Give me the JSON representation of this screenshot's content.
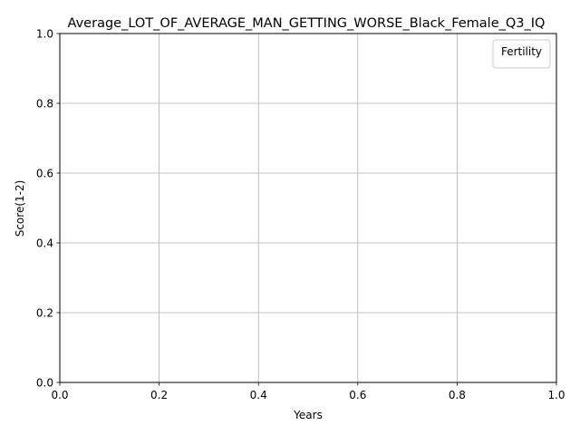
{
  "chart_data": {
    "type": "line",
    "title": "Average_LOT_OF_AVERAGE_MAN_GETTING_WORSE_Black_Female_Q3_IQ",
    "xlabel": "Years",
    "ylabel": "Score(1-2)",
    "xlim": [
      0.0,
      1.0
    ],
    "ylim": [
      0.0,
      1.0
    ],
    "x_ticks": [
      0.0,
      0.2,
      0.4,
      0.6,
      0.8,
      1.0
    ],
    "y_ticks": [
      0.0,
      0.2,
      0.4,
      0.6,
      0.8,
      1.0
    ],
    "x_tick_labels": [
      "0.0",
      "0.2",
      "0.4",
      "0.6",
      "0.8",
      "1.0"
    ],
    "y_tick_labels": [
      "0.0",
      "0.2",
      "0.4",
      "0.6",
      "0.8",
      "1.0"
    ],
    "grid": true,
    "legend": {
      "title": "Fertility",
      "placement": "top-right",
      "entries": []
    },
    "series": []
  },
  "colors": {
    "grid": "#b0b0b0",
    "axis": "#000000",
    "background": "#ffffff"
  }
}
